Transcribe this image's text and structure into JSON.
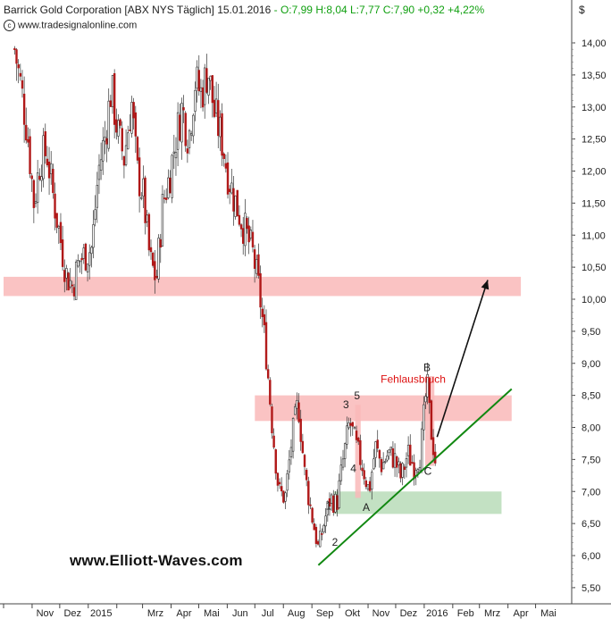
{
  "header": {
    "title": "Barrick Gold Corporation [ABX NYS  Täglich] 15.01.2016",
    "quote": "- O:7,99 H:8,04 L:7,77 C:7,90 +0,32 +4,22%",
    "source": "www.tradesignalonline.com",
    "currency": "$"
  },
  "watermark": "www.Elliott-Waves.com",
  "chart_data": {
    "type": "candlestick",
    "title": "Barrick Gold Corporation [ABX NYS  Täglich] 15.01.2016",
    "ylim": [
      5.3,
      14.6
    ],
    "y_ticks": [
      "14,00",
      "13,50",
      "13,00",
      "12,50",
      "12,00",
      "11,50",
      "11,00",
      "10,50",
      "10,00",
      "9,50",
      "9,00",
      "8,50",
      "8,00",
      "7,50",
      "7,00",
      "6,50",
      "6,00",
      "5,50"
    ],
    "x_ticks": [
      "Nov",
      "Dez",
      "2015",
      "Mrz",
      "Apr",
      "Mai",
      "Jun",
      "Jul",
      "Aug",
      "Sep",
      "Okt",
      "Nov",
      "Dez",
      "2016",
      "Feb",
      "Mrz",
      "Apr",
      "Mai"
    ],
    "grid": false,
    "price_path": [
      {
        "date": "2014-10-13",
        "close": 13.9
      },
      {
        "date": "2014-10-20",
        "close": 13.3
      },
      {
        "date": "2014-10-27",
        "close": 12.6
      },
      {
        "date": "2014-11-03",
        "close": 11.5
      },
      {
        "date": "2014-11-10",
        "close": 12.2
      },
      {
        "date": "2014-11-17",
        "close": 12.3
      },
      {
        "date": "2014-11-24",
        "close": 11.6
      },
      {
        "date": "2014-12-01",
        "close": 11.0
      },
      {
        "date": "2014-12-08",
        "close": 10.4
      },
      {
        "date": "2014-12-15",
        "close": 10.2
      },
      {
        "date": "2014-12-22",
        "close": 10.6
      },
      {
        "date": "2015-01-05",
        "close": 10.8
      },
      {
        "date": "2015-01-12",
        "close": 12.0
      },
      {
        "date": "2015-01-20",
        "close": 12.6
      },
      {
        "date": "2015-01-26",
        "close": 13.3
      },
      {
        "date": "2015-02-02",
        "close": 12.6
      },
      {
        "date": "2015-02-09",
        "close": 12.2
      },
      {
        "date": "2015-02-17",
        "close": 13.1
      },
      {
        "date": "2015-02-23",
        "close": 12.0
      },
      {
        "date": "2015-03-02",
        "close": 11.6
      },
      {
        "date": "2015-03-09",
        "close": 10.6
      },
      {
        "date": "2015-03-16",
        "close": 10.3
      },
      {
        "date": "2015-03-23",
        "close": 11.5
      },
      {
        "date": "2015-03-30",
        "close": 11.9
      },
      {
        "date": "2015-04-06",
        "close": 12.5
      },
      {
        "date": "2015-04-13",
        "close": 13.0
      },
      {
        "date": "2015-04-20",
        "close": 12.5
      },
      {
        "date": "2015-04-27",
        "close": 13.4
      },
      {
        "date": "2015-05-04",
        "close": 13.2
      },
      {
        "date": "2015-05-11",
        "close": 13.6
      },
      {
        "date": "2015-05-18",
        "close": 12.9
      },
      {
        "date": "2015-05-26",
        "close": 12.5
      },
      {
        "date": "2015-06-01",
        "close": 12.0
      },
      {
        "date": "2015-06-08",
        "close": 11.6
      },
      {
        "date": "2015-06-15",
        "close": 11.3
      },
      {
        "date": "2015-06-22",
        "close": 11.0
      },
      {
        "date": "2015-06-29",
        "close": 10.7
      },
      {
        "date": "2015-07-06",
        "close": 10.1
      },
      {
        "date": "2015-07-13",
        "close": 9.2
      },
      {
        "date": "2015-07-20",
        "close": 8.0
      },
      {
        "date": "2015-07-27",
        "close": 7.0
      },
      {
        "date": "2015-08-03",
        "close": 6.9
      },
      {
        "date": "2015-08-10",
        "close": 7.8
      },
      {
        "date": "2015-08-17",
        "close": 8.4
      },
      {
        "date": "2015-08-24",
        "close": 7.3
      },
      {
        "date": "2015-08-31",
        "close": 6.7
      },
      {
        "date": "2015-09-08",
        "close": 6.1
      },
      {
        "date": "2015-09-14",
        "close": 6.5
      },
      {
        "date": "2015-09-21",
        "close": 6.9
      },
      {
        "date": "2015-09-28",
        "close": 6.8
      },
      {
        "date": "2015-10-05",
        "close": 7.5
      },
      {
        "date": "2015-10-12",
        "close": 8.1
      },
      {
        "date": "2015-10-19",
        "close": 7.7
      },
      {
        "date": "2015-10-26",
        "close": 7.4
      },
      {
        "date": "2015-11-02",
        "close": 7.0
      },
      {
        "date": "2015-11-09",
        "close": 7.7
      },
      {
        "date": "2015-11-16",
        "close": 7.4
      },
      {
        "date": "2015-11-23",
        "close": 7.6
      },
      {
        "date": "2015-11-30",
        "close": 7.5
      },
      {
        "date": "2015-12-07",
        "close": 7.2
      },
      {
        "date": "2015-12-14",
        "close": 7.6
      },
      {
        "date": "2015-12-21",
        "close": 7.4
      },
      {
        "date": "2015-12-28",
        "close": 7.6
      },
      {
        "date": "2016-01-04",
        "close": 8.7
      },
      {
        "date": "2016-01-08",
        "close": 8.0
      },
      {
        "date": "2016-01-13",
        "close": 7.5
      },
      {
        "date": "2016-01-15",
        "close": 7.9
      }
    ],
    "zones": [
      {
        "y_low": 10.05,
        "y_high": 10.35,
        "x_start": "2014-10-01",
        "x_end": "2016-04-15",
        "color": "#f9b9b9"
      },
      {
        "y_low": 8.1,
        "y_high": 8.5,
        "x_start": "2015-07-01",
        "x_end": "2016-04-05",
        "color": "#f9b9b9"
      },
      {
        "y_low": 6.65,
        "y_high": 7.0,
        "x_start": "2015-09-25",
        "x_end": "2016-03-25",
        "color": "#b9dcb9"
      },
      {
        "y_low": 6.9,
        "y_high": 8.35,
        "x_start": "2015-10-18",
        "x_end": "2015-10-24",
        "color": "#f9b9b9"
      },
      {
        "y_low": 7.4,
        "y_high": 8.8,
        "x_start": "2016-01-02",
        "x_end": "2016-01-12",
        "color": "#f9b9b9"
      }
    ],
    "trendline": {
      "x1": "2015-09-08",
      "y1": 5.85,
      "x2": "2016-04-05",
      "y2": 8.6,
      "color": "#118811"
    },
    "projection_arrow": {
      "x1": "2016-01-15",
      "y1": 7.85,
      "x2": "2016-03-10",
      "y2": 10.3,
      "color": "#111111"
    },
    "annotations": [
      {
        "text": "1",
        "x": "2015-09-19",
        "y": 6.72
      },
      {
        "text": "2",
        "x": "2015-09-26",
        "y": 6.15
      },
      {
        "text": "3",
        "x": "2015-10-08",
        "y": 8.3
      },
      {
        "text": "4",
        "x": "2015-10-16",
        "y": 7.3
      },
      {
        "text": "5",
        "x": "2015-10-20",
        "y": 8.44
      },
      {
        "text": "A",
        "x": "2015-10-30",
        "y": 6.7
      },
      {
        "text": "B",
        "x": "2016-01-04",
        "y": 8.88
      },
      {
        "text": "C",
        "x": "2016-01-05",
        "y": 7.26
      },
      {
        "text": "Fehlausbruch",
        "x": "2015-12-20",
        "y": 8.7,
        "color": "#dd1111"
      }
    ]
  }
}
